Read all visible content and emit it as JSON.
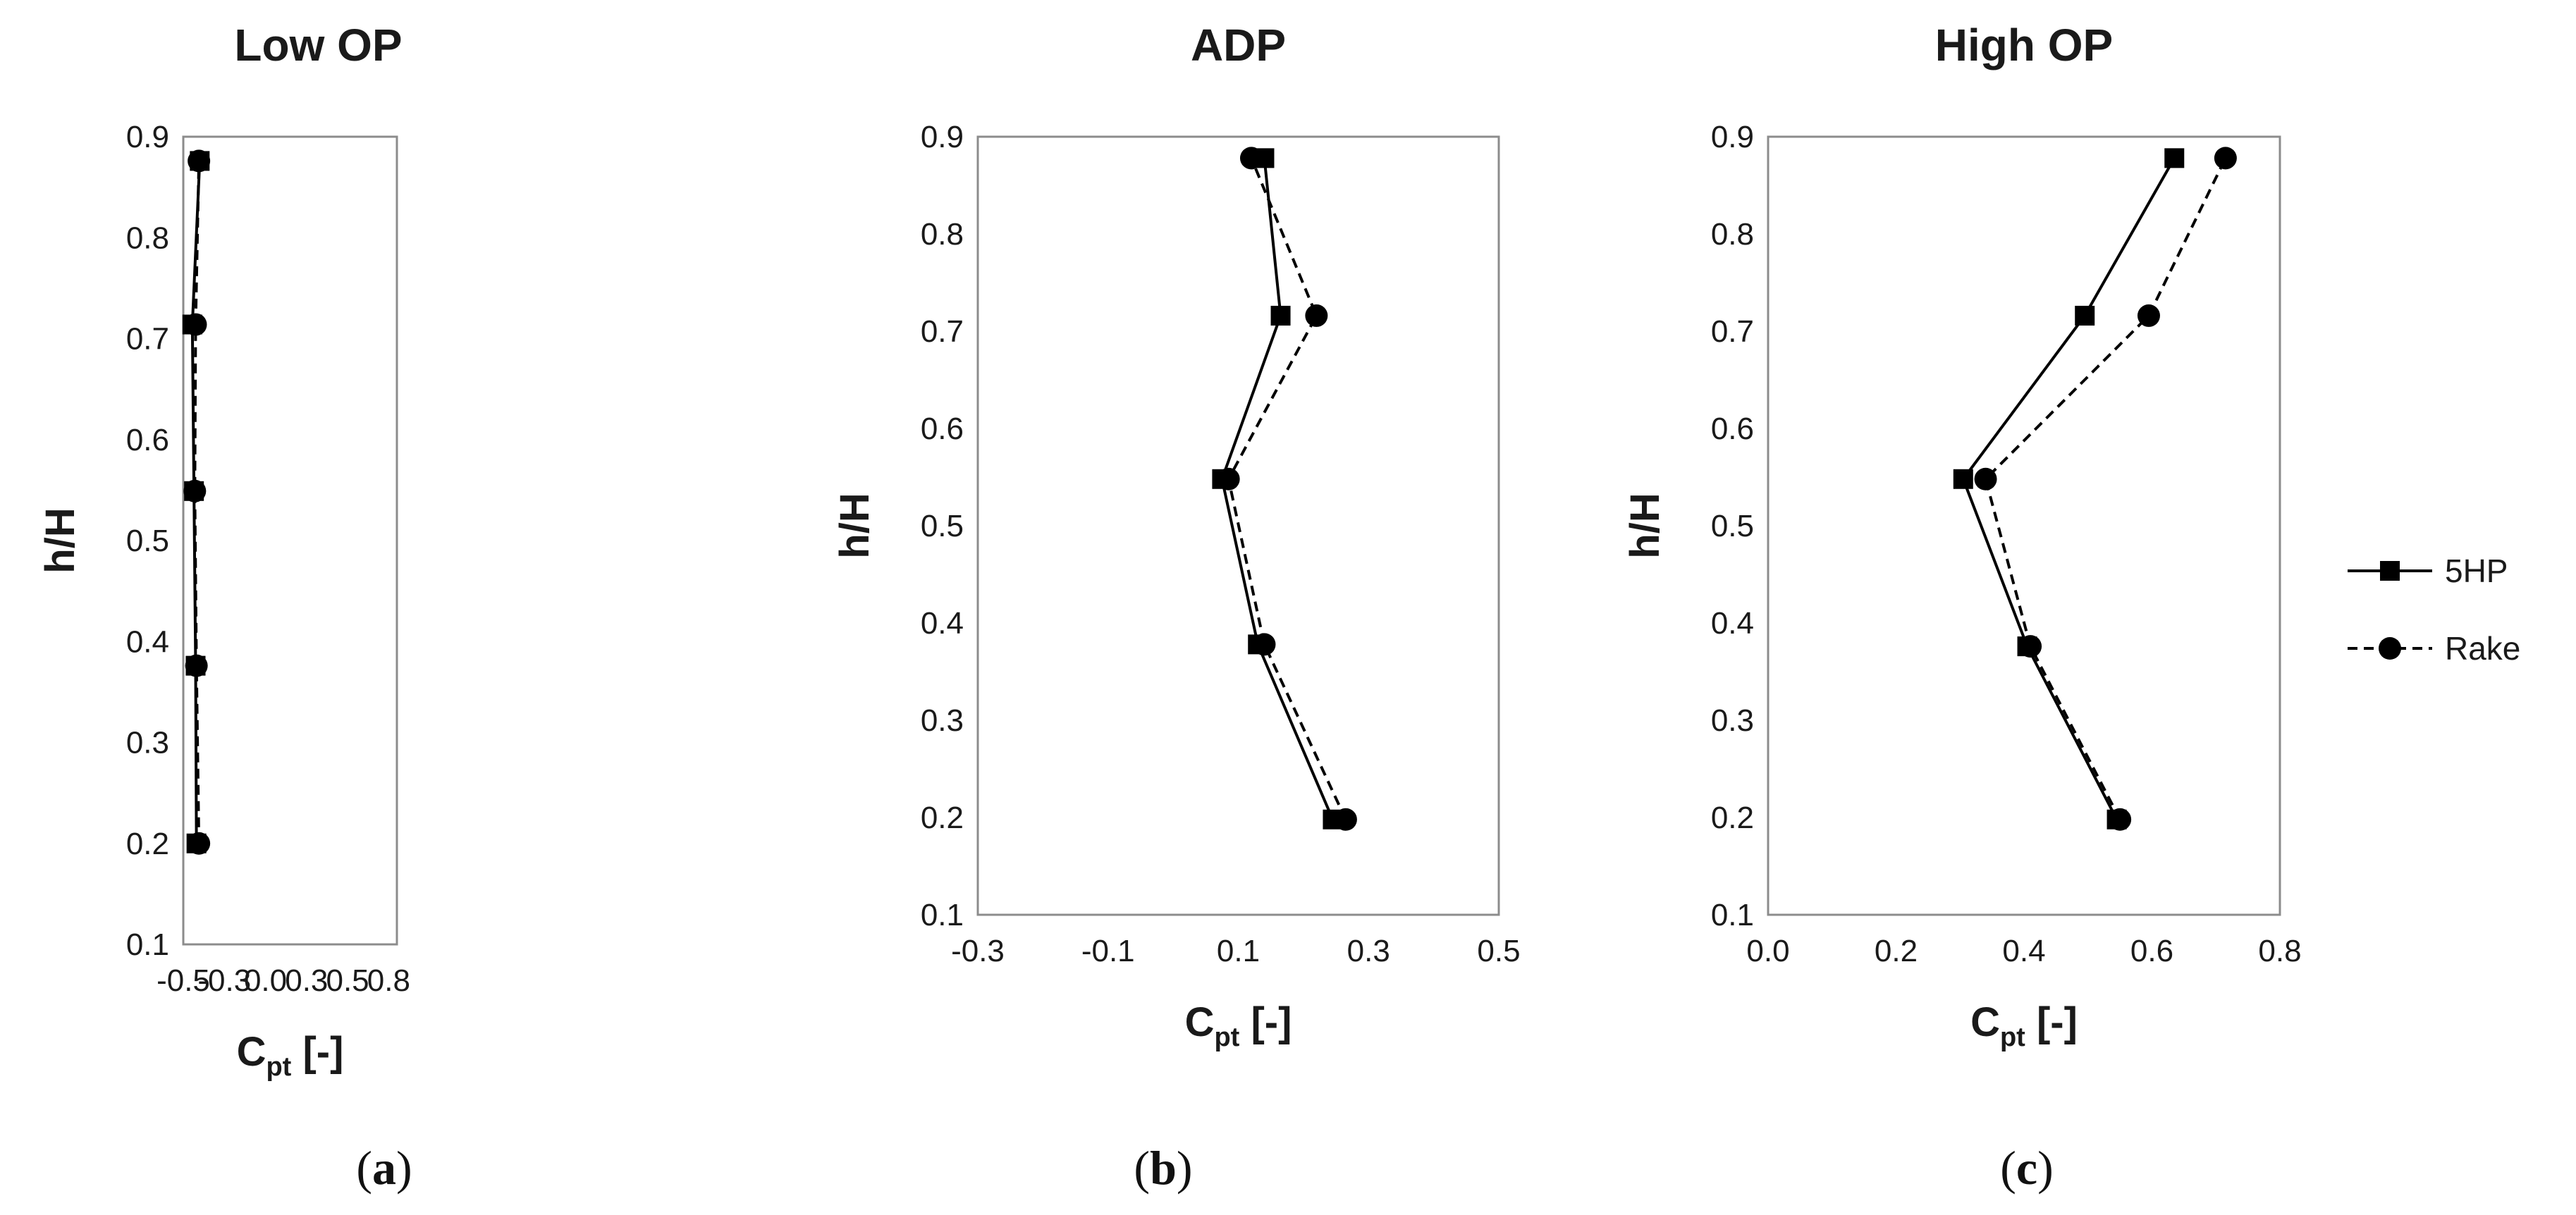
{
  "chart_data": [
    {
      "type": "line",
      "panel_label": "a",
      "title": "Low OP",
      "ylabel": "h/H",
      "xlabel_main": "C",
      "xlabel_sub": "pt",
      "xlabel_unit": " [-]",
      "xlim": [
        -0.5,
        0.8
      ],
      "ylim": [
        0.1,
        0.9
      ],
      "xticks": [
        -0.5,
        -0.25,
        0.0,
        0.25,
        0.5,
        0.75
      ],
      "xtick_labels": [
        "-0.5",
        "-0.3",
        "0.0",
        "0.3",
        "0.5",
        "0.8"
      ],
      "yticks": [
        0.1,
        0.2,
        0.3,
        0.4,
        0.5,
        0.6,
        0.7,
        0.8,
        0.9
      ],
      "ytick_labels": [
        "0.1",
        "0.2",
        "0.3",
        "0.4",
        "0.5",
        "0.6",
        "0.7",
        "0.8",
        "0.9"
      ],
      "series": [
        {
          "name": "5HP",
          "marker": "square",
          "dash": "solid",
          "x": [
            -0.42,
            -0.425,
            -0.435,
            -0.445,
            -0.4
          ],
          "y": [
            0.2,
            0.376,
            0.549,
            0.714,
            0.876
          ]
        },
        {
          "name": "Rake",
          "marker": "circle",
          "dash": "dashed",
          "x": [
            -0.405,
            -0.42,
            -0.43,
            -0.425,
            -0.405
          ],
          "y": [
            0.2,
            0.376,
            0.549,
            0.714,
            0.876
          ]
        }
      ]
    },
    {
      "type": "line",
      "panel_label": "b",
      "title": "ADP",
      "ylabel": "h/H",
      "xlabel_main": "C",
      "xlabel_sub": "pt",
      "xlabel_unit": " [-]",
      "xlim": [
        -0.3,
        0.5
      ],
      "ylim": [
        0.1,
        0.9
      ],
      "xticks": [
        -0.3,
        -0.1,
        0.1,
        0.3,
        0.5
      ],
      "xtick_labels": [
        "-0.3",
        "-0.1",
        "0.1",
        "0.3",
        "0.5"
      ],
      "yticks": [
        0.1,
        0.2,
        0.3,
        0.4,
        0.5,
        0.6,
        0.7,
        0.8,
        0.9
      ],
      "ytick_labels": [
        "0.1",
        "0.2",
        "0.3",
        "0.4",
        "0.5",
        "0.6",
        "0.7",
        "0.8",
        "0.9"
      ],
      "series": [
        {
          "name": "5HP",
          "marker": "square",
          "dash": "solid",
          "x": [
            0.245,
            0.13,
            0.075,
            0.165,
            0.14
          ],
          "y": [
            0.198,
            0.378,
            0.548,
            0.716,
            0.878
          ]
        },
        {
          "name": "Rake",
          "marker": "circle",
          "dash": "dashed",
          "x": [
            0.265,
            0.14,
            0.085,
            0.22,
            0.12
          ],
          "y": [
            0.198,
            0.378,
            0.548,
            0.716,
            0.878
          ]
        }
      ]
    },
    {
      "type": "line",
      "panel_label": "c",
      "title": "High OP",
      "ylabel": "h/H",
      "xlabel_main": "C",
      "xlabel_sub": "pt",
      "xlabel_unit": " [-]",
      "xlim": [
        0.0,
        0.8
      ],
      "ylim": [
        0.1,
        0.9
      ],
      "xticks": [
        0.0,
        0.2,
        0.4,
        0.6,
        0.8
      ],
      "xtick_labels": [
        "0.0",
        "0.2",
        "0.4",
        "0.6",
        "0.8"
      ],
      "yticks": [
        0.1,
        0.2,
        0.3,
        0.4,
        0.5,
        0.6,
        0.7,
        0.8,
        0.9
      ],
      "ytick_labels": [
        "0.1",
        "0.2",
        "0.3",
        "0.4",
        "0.5",
        "0.6",
        "0.7",
        "0.8",
        "0.9"
      ],
      "series": [
        {
          "name": "5HP",
          "marker": "square",
          "dash": "solid",
          "x": [
            0.545,
            0.405,
            0.305,
            0.495,
            0.635
          ],
          "y": [
            0.198,
            0.376,
            0.548,
            0.716,
            0.878
          ]
        },
        {
          "name": "Rake",
          "marker": "circle",
          "dash": "dashed",
          "x": [
            0.55,
            0.41,
            0.34,
            0.595,
            0.715
          ],
          "y": [
            0.198,
            0.376,
            0.548,
            0.716,
            0.878
          ]
        }
      ]
    }
  ],
  "legend": {
    "position": "right",
    "entries": [
      {
        "label": "5HP",
        "marker": "square",
        "dash": "solid"
      },
      {
        "label": "Rake",
        "marker": "circle",
        "dash": "dashed"
      }
    ]
  },
  "captions": [
    {
      "open": "(",
      "label": "a",
      "close": ")"
    },
    {
      "open": "(",
      "label": "b",
      "close": ")"
    },
    {
      "open": "(",
      "label": "c",
      "close": ")"
    }
  ]
}
